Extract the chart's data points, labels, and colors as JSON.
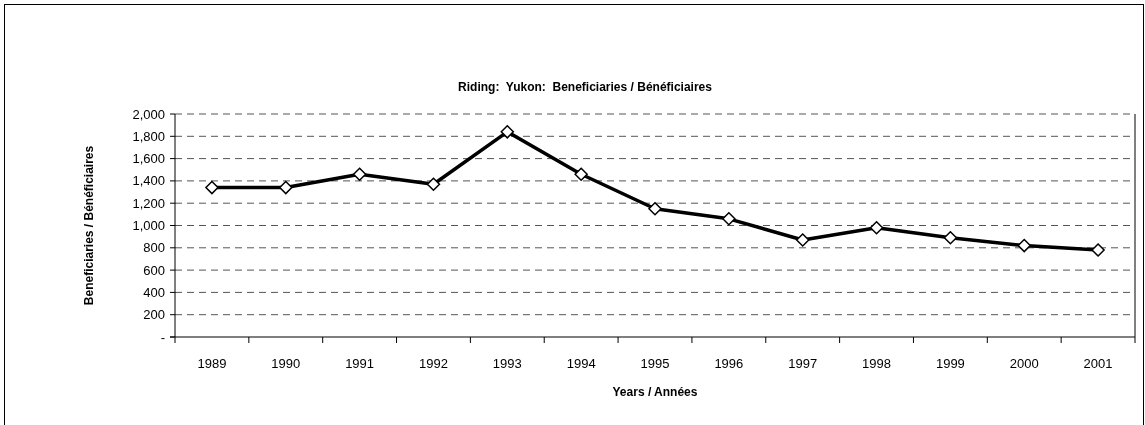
{
  "chart_data": {
    "type": "line",
    "title": "Riding:  Yukon:  Beneficiaries / Bénéficiaires",
    "xlabel": "Years / Années",
    "ylabel": "Beneficiaries / Bénéficiaires",
    "categories": [
      "1989",
      "1990",
      "1991",
      "1992",
      "1993",
      "1994",
      "1995",
      "1996",
      "1997",
      "1998",
      "1999",
      "2000",
      "2001"
    ],
    "series": [
      {
        "color": "#000000",
        "values": [
          1340,
          1340,
          1460,
          1370,
          1840,
          1460,
          1150,
          1060,
          870,
          980,
          890,
          820,
          780
        ]
      }
    ],
    "ylim": [
      0,
      2000
    ],
    "yticks": [
      {
        "value": 0,
        "label": "-"
      },
      {
        "value": 200,
        "label": "200"
      },
      {
        "value": 400,
        "label": "400"
      },
      {
        "value": 600,
        "label": "600"
      },
      {
        "value": 800,
        "label": "800"
      },
      {
        "value": 1000,
        "label": "1,000"
      },
      {
        "value": 1200,
        "label": "1,200"
      },
      {
        "value": 1400,
        "label": "1,400"
      },
      {
        "value": 1600,
        "label": "1,600"
      },
      {
        "value": 1800,
        "label": "1,800"
      },
      {
        "value": 2000,
        "label": "2,000"
      }
    ],
    "grid": "y",
    "marker": "diamond",
    "line_style": "solid"
  }
}
